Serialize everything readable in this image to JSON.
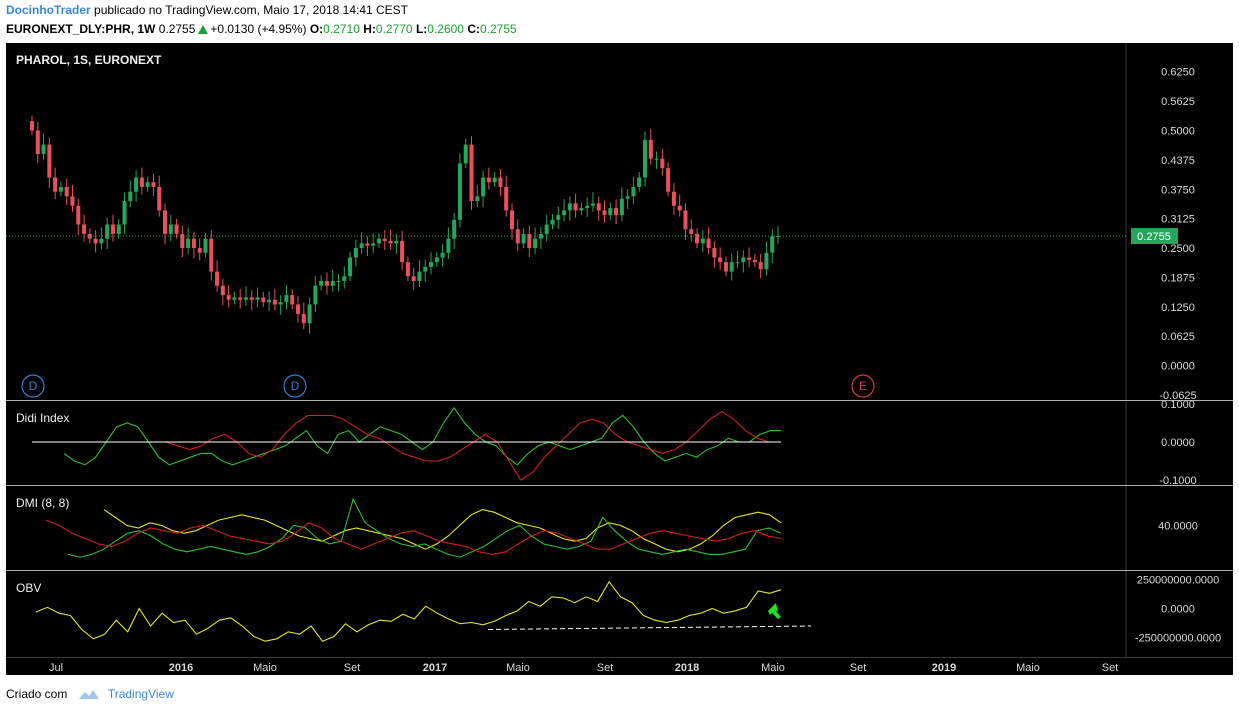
{
  "header": {
    "author": "DocinhoTrader",
    "published": "publicado no TradingView.com, Maio 17, 2018 14:41 CEST",
    "symbol": "EURONEXT_DLY:PHR, 1W",
    "last": "0.2755",
    "change": "+0.0130 (+4.95%)",
    "o_label": "O:",
    "o": "0.2710",
    "h_label": "H:",
    "h": "0.2770",
    "l_label": "L:",
    "l": "0.2600",
    "c_label": "C:",
    "c": "0.2755"
  },
  "footer": {
    "created": "Criado com",
    "brand": "TradingView"
  },
  "colors": {
    "background": "#000000",
    "up": "#26a65b",
    "down": "#e8505b",
    "didi_green": "#2fbf2f",
    "didi_red": "#d11f1f",
    "didi_zero": "#ffffff",
    "dmi_yellow": "#e6e62a",
    "dmi_green": "#2fbf2f",
    "dmi_red": "#d11f1f",
    "obv": "#e6e62a",
    "axis_text": "#d9d9d9",
    "separator": "#b0b0b0"
  },
  "chart_data": [
    {
      "type": "candlestick",
      "title": "PHAROL, 1S, EURONEXT",
      "yticks": [
        "0.6250",
        "0.5625",
        "0.5000",
        "0.4375",
        "0.3750",
        "0.3125",
        "0.2500",
        "0.1875",
        "0.1250",
        "0.0625",
        "0.0000",
        "-0.0625"
      ],
      "ylim": [
        -0.0625,
        0.6563
      ],
      "last_price_label": "0.2755",
      "last_price": 0.2755,
      "close": [
        0.5,
        0.45,
        0.47,
        0.4,
        0.37,
        0.38,
        0.36,
        0.34,
        0.3,
        0.28,
        0.27,
        0.26,
        0.27,
        0.3,
        0.28,
        0.3,
        0.35,
        0.37,
        0.4,
        0.38,
        0.39,
        0.38,
        0.33,
        0.28,
        0.3,
        0.28,
        0.25,
        0.27,
        0.25,
        0.24,
        0.27,
        0.2,
        0.17,
        0.15,
        0.14,
        0.145,
        0.14,
        0.145,
        0.14,
        0.145,
        0.135,
        0.14,
        0.13,
        0.135,
        0.15,
        0.13,
        0.11,
        0.09,
        0.13,
        0.17,
        0.18,
        0.17,
        0.18,
        0.18,
        0.19,
        0.23,
        0.25,
        0.26,
        0.255,
        0.26,
        0.27,
        0.265,
        0.26,
        0.265,
        0.22,
        0.19,
        0.18,
        0.2,
        0.21,
        0.22,
        0.23,
        0.24,
        0.27,
        0.31,
        0.43,
        0.47,
        0.35,
        0.36,
        0.4,
        0.39,
        0.4,
        0.38,
        0.33,
        0.29,
        0.26,
        0.28,
        0.25,
        0.27,
        0.28,
        0.3,
        0.31,
        0.32,
        0.33,
        0.345,
        0.33,
        0.335,
        0.34,
        0.345,
        0.33,
        0.32,
        0.335,
        0.32,
        0.355,
        0.36,
        0.38,
        0.4,
        0.48,
        0.44,
        0.44,
        0.42,
        0.37,
        0.34,
        0.33,
        0.29,
        0.28,
        0.26,
        0.27,
        0.25,
        0.23,
        0.22,
        0.2,
        0.22,
        0.22,
        0.23,
        0.225,
        0.22,
        0.205,
        0.24,
        0.275,
        0.2755
      ],
      "volume_up_down_note": "",
      "x_labels": [
        "Jul",
        "2016",
        "Maio",
        "Set",
        "2017",
        "Maio",
        "Set",
        "2018",
        "Maio",
        "Set",
        "2019",
        "Maio",
        "Set"
      ],
      "markers": [
        {
          "label": "D",
          "color": "#2f7fd6"
        },
        {
          "label": "D",
          "color": "#2f7fd6"
        },
        {
          "label": "E",
          "color": "#d33a3a"
        }
      ]
    },
    {
      "type": "line",
      "title": "Didi Index",
      "yticks": [
        "0.1000",
        "0.0000",
        "-0.1000"
      ],
      "ylim": [
        -0.1,
        0.1
      ],
      "series": [
        {
          "color": "#2fbf2f",
          "values": [
            -0.03,
            -0.05,
            -0.06,
            -0.04,
            0.0,
            0.04,
            0.05,
            0.04,
            0.0,
            -0.04,
            -0.06,
            -0.05,
            -0.04,
            -0.03,
            -0.03,
            -0.05,
            -0.06,
            -0.05,
            -0.04,
            -0.03,
            -0.02,
            -0.01,
            0.01,
            0.03,
            -0.01,
            -0.03,
            0.02,
            0.03,
            0.0,
            0.02,
            0.04,
            0.03,
            0.02,
            0.0,
            -0.02,
            0.0,
            0.05,
            0.09,
            0.05,
            0.02,
            0.0,
            -0.01,
            -0.04,
            -0.06,
            -0.03,
            -0.01,
            0.0,
            -0.01,
            -0.02,
            -0.01,
            0.0,
            0.01,
            0.05,
            0.07,
            0.04,
            0.0,
            -0.03,
            -0.05,
            -0.04,
            -0.03,
            -0.04,
            -0.02,
            -0.01,
            0.01,
            0.0,
            0.0,
            0.02,
            0.03,
            0.03
          ]
        },
        {
          "color": "#d11f1f",
          "values": [
            0.0,
            -0.01,
            -0.02,
            -0.01,
            0.01,
            0.02,
            0.0,
            -0.03,
            -0.04,
            -0.02,
            0.02,
            0.05,
            0.07,
            0.07,
            0.07,
            0.06,
            0.04,
            0.02,
            0.01,
            -0.01,
            -0.03,
            -0.04,
            -0.05,
            -0.05,
            -0.04,
            -0.02,
            0.0,
            0.02,
            0.0,
            -0.05,
            -0.1,
            -0.08,
            -0.04,
            -0.01,
            0.02,
            0.05,
            0.06,
            0.05,
            0.02,
            0.0,
            -0.01,
            -0.02,
            -0.03,
            -0.02,
            0.0,
            0.03,
            0.06,
            0.08,
            0.06,
            0.03,
            0.01,
            0.0,
            0.0
          ]
        },
        {
          "color": "#ffffff",
          "values": [
            0.0,
            0.0
          ]
        }
      ]
    },
    {
      "type": "line",
      "title": "DMI (8, 8)",
      "yticks": [
        "40.0000"
      ],
      "ylim": [
        10,
        60
      ],
      "series": [
        {
          "color": "#e6e62a",
          "values": [
            52,
            46,
            40,
            38,
            42,
            40,
            36,
            34,
            36,
            40,
            44,
            46,
            48,
            46,
            44,
            40,
            36,
            32,
            30,
            28,
            32,
            36,
            38,
            36,
            34,
            32,
            30,
            26,
            22,
            26,
            32,
            40,
            48,
            52,
            50,
            46,
            42,
            40,
            38,
            34,
            30,
            28,
            30,
            38,
            42,
            40,
            36,
            30,
            26,
            22,
            20,
            22,
            26,
            32,
            40,
            46,
            48,
            50,
            48,
            42
          ]
        },
        {
          "color": "#2fbf2f",
          "values": [
            18,
            16,
            18,
            22,
            28,
            34,
            36,
            32,
            26,
            22,
            20,
            22,
            24,
            22,
            20,
            18,
            20,
            24,
            30,
            40,
            38,
            30,
            26,
            28,
            60,
            42,
            36,
            30,
            26,
            24,
            26,
            22,
            18,
            16,
            20,
            24,
            30,
            36,
            40,
            32,
            26,
            24,
            22,
            24,
            28,
            46,
            36,
            28,
            22,
            20,
            18,
            20,
            22,
            20,
            18,
            18,
            20,
            22,
            36,
            38,
            34
          ]
        },
        {
          "color": "#d11f1f",
          "values": [
            44,
            40,
            34,
            30,
            26,
            24,
            28,
            34,
            38,
            36,
            34,
            38,
            40,
            36,
            32,
            30,
            28,
            26,
            28,
            34,
            42,
            38,
            30,
            26,
            22,
            26,
            30,
            34,
            36,
            32,
            28,
            26,
            24,
            20,
            18,
            20,
            26,
            32,
            36,
            34,
            30,
            26,
            22,
            22,
            26,
            30,
            34,
            36,
            34,
            32,
            30,
            28,
            30,
            34,
            36,
            32,
            30
          ]
        }
      ]
    },
    {
      "type": "line",
      "title": "OBV",
      "yticks": [
        "250000000.0000",
        "0.0000",
        "-250000000.0000"
      ],
      "ylim": [
        -330000000,
        270000000
      ],
      "series": [
        {
          "color": "#e6e62a",
          "values": [
            -30,
            10,
            -40,
            -60,
            -180,
            -260,
            -220,
            -100,
            -200,
            0,
            -150,
            -40,
            -120,
            -100,
            -220,
            -170,
            -100,
            -80,
            -150,
            -240,
            -280,
            -260,
            -200,
            -220,
            -150,
            -280,
            -240,
            -130,
            -200,
            -140,
            -100,
            -110,
            -50,
            -90,
            20,
            -40,
            -90,
            -130,
            -120,
            -140,
            -110,
            -60,
            -20,
            60,
            20,
            100,
            90,
            50,
            100,
            60,
            230,
            100,
            50,
            -60,
            -100,
            -120,
            -100,
            -60,
            -40,
            0,
            -40,
            -20,
            10,
            150,
            130,
            160
          ]
        }
      ],
      "support_line": true,
      "arrow_marker": true
    }
  ]
}
